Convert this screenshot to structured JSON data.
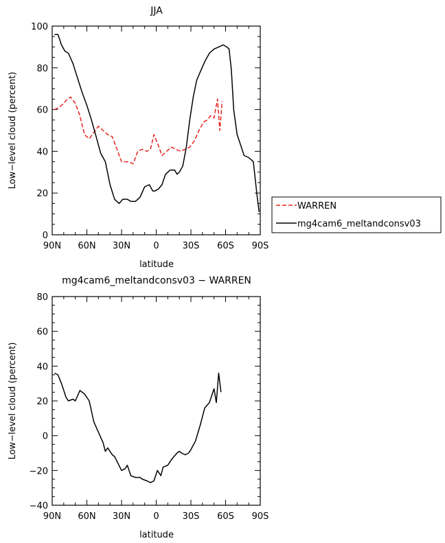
{
  "chart_data": [
    {
      "type": "line",
      "title": "JJA",
      "xlabel": "latitude",
      "ylabel": "Low−level cloud (percent)",
      "xlim": [
        90,
        -90
      ],
      "ylim": [
        0,
        100
      ],
      "xticks": [
        90,
        60,
        30,
        0,
        -30,
        -60,
        -90
      ],
      "xtick_labels": [
        "90N",
        "60N",
        "30N",
        "0",
        "30S",
        "60S",
        "90S"
      ],
      "yticks": [
        0,
        20,
        40,
        60,
        80,
        100
      ],
      "ytick_labels": [
        "0",
        "20",
        "40",
        "60",
        "80",
        "100"
      ],
      "legend_position": "right",
      "series": [
        {
          "name": "WARREN",
          "color": "#e8221c",
          "dash": "dashed",
          "x": [
            88,
            84,
            80,
            77,
            74,
            70,
            66,
            62,
            58,
            54,
            50,
            46,
            42,
            38,
            34,
            30,
            27,
            24,
            20,
            16,
            12,
            8,
            5,
            2,
            -1,
            -5,
            -9,
            -13,
            -17,
            -21,
            -25,
            -29,
            -33,
            -37,
            -41,
            -44,
            -47,
            -50,
            -53,
            -55,
            -57
          ],
          "y": [
            60,
            61,
            63,
            65,
            66,
            63,
            57,
            48,
            46,
            49,
            52,
            50,
            48,
            47,
            41,
            35,
            35,
            35,
            34,
            40,
            41,
            40,
            41,
            48,
            44,
            38,
            40,
            42,
            41,
            40,
            41,
            42,
            45,
            50,
            54,
            55,
            57,
            56,
            65,
            50,
            64
          ]
        },
        {
          "name": "mg4cam6_meltandconsv03",
          "color": "#000000",
          "dash": "solid",
          "x": [
            88,
            85,
            82,
            79,
            76,
            72,
            68,
            64,
            60,
            56,
            52,
            48,
            44,
            40,
            36,
            32,
            29,
            27,
            25,
            22,
            18,
            14,
            10,
            6,
            3,
            1,
            -2,
            -5,
            -8,
            -12,
            -16,
            -18,
            -20,
            -23,
            -26,
            -29,
            -32,
            -35,
            -38,
            -42,
            -46,
            -50,
            -54,
            -58,
            -61,
            -63,
            -65,
            -67,
            -70,
            -73,
            -76,
            -80,
            -84,
            -87,
            -89
          ],
          "y": [
            96,
            96,
            91,
            88,
            87,
            82,
            75,
            68,
            62,
            55,
            47,
            39,
            35,
            24,
            17,
            15,
            17,
            17,
            17,
            16,
            16,
            18,
            23,
            24,
            21,
            21,
            22,
            24,
            29,
            31,
            31,
            29,
            30,
            33,
            42,
            55,
            66,
            74,
            78,
            83,
            87,
            89,
            90,
            91,
            90,
            89,
            79,
            60,
            48,
            43,
            38,
            37,
            35,
            20,
            11
          ]
        }
      ]
    },
    {
      "type": "line",
      "title": "mg4cam6_meltandconsv03 − WARREN",
      "xlabel": "latitude",
      "ylabel": "Low−level cloud (percent)",
      "xlim": [
        90,
        -90
      ],
      "ylim": [
        -40,
        80
      ],
      "xticks": [
        90,
        60,
        30,
        0,
        -30,
        -60,
        -90
      ],
      "xtick_labels": [
        "90N",
        "60N",
        "30N",
        "0",
        "30S",
        "60S",
        "90S"
      ],
      "yticks": [
        -40,
        -20,
        0,
        20,
        40,
        60,
        80
      ],
      "ytick_labels": [
        "−40",
        "−20",
        "0",
        "20",
        "40",
        "60",
        "80"
      ],
      "series": [
        {
          "name": "mg4cam6_meltandconsv03 − WARREN",
          "color": "#000000",
          "dash": "solid",
          "x": [
            88,
            85,
            82,
            78,
            76,
            72,
            70,
            66,
            62,
            58,
            54,
            50,
            46,
            44,
            42,
            38,
            36,
            33,
            30,
            27,
            25,
            22,
            18,
            14,
            12,
            8,
            5,
            2,
            -1,
            -4,
            -6,
            -10,
            -14,
            -18,
            -20,
            -22,
            -25,
            -28,
            -30,
            -34,
            -38,
            -42,
            -46,
            -48,
            -50,
            -52,
            -54,
            -56
          ],
          "y": [
            36,
            35,
            30,
            22,
            20,
            21,
            20,
            26,
            24,
            20,
            8,
            2,
            -4,
            -9,
            -7,
            -11,
            -12,
            -16,
            -20,
            -19,
            -17,
            -23,
            -24,
            -24,
            -25,
            -26,
            -27,
            -26,
            -20,
            -23,
            -18,
            -17,
            -13,
            -10,
            -9,
            -10,
            -11,
            -10,
            -8,
            -3,
            6,
            16,
            19,
            23,
            27,
            19,
            36,
            25
          ]
        }
      ]
    }
  ]
}
